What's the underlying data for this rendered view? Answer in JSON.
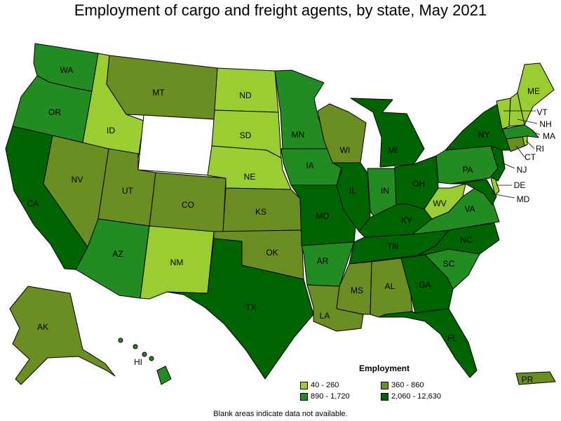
{
  "title": "Employment of cargo and freight agents, by state, May 2021",
  "legend": {
    "title": "Employment",
    "bins": [
      {
        "label": "40 - 260",
        "color": "#9acd32"
      },
      {
        "label": "360 - 860",
        "color": "#6b8e23"
      },
      {
        "label": "890 - 1,720",
        "color": "#228b22"
      },
      {
        "label": "2,060 - 12,630",
        "color": "#006400"
      }
    ]
  },
  "footnote": "Blank areas indicate data not available.",
  "states": [
    {
      "abbr": "WA",
      "bin": 2
    },
    {
      "abbr": "OR",
      "bin": 2
    },
    {
      "abbr": "CA",
      "bin": 3
    },
    {
      "abbr": "ID",
      "bin": 0
    },
    {
      "abbr": "NV",
      "bin": 1
    },
    {
      "abbr": "MT",
      "bin": 1
    },
    {
      "abbr": "WY",
      "bin": -1
    },
    {
      "abbr": "UT",
      "bin": 1
    },
    {
      "abbr": "AZ",
      "bin": 2
    },
    {
      "abbr": "CO",
      "bin": 1
    },
    {
      "abbr": "NM",
      "bin": 0
    },
    {
      "abbr": "ND",
      "bin": 0
    },
    {
      "abbr": "SD",
      "bin": 0
    },
    {
      "abbr": "NE",
      "bin": 0
    },
    {
      "abbr": "KS",
      "bin": 1
    },
    {
      "abbr": "OK",
      "bin": 1
    },
    {
      "abbr": "TX",
      "bin": 3
    },
    {
      "abbr": "MN",
      "bin": 2
    },
    {
      "abbr": "IA",
      "bin": 2
    },
    {
      "abbr": "MO",
      "bin": 3
    },
    {
      "abbr": "AR",
      "bin": 2
    },
    {
      "abbr": "LA",
      "bin": 1
    },
    {
      "abbr": "WI",
      "bin": 1
    },
    {
      "abbr": "IL",
      "bin": 3
    },
    {
      "abbr": "MI",
      "bin": 3
    },
    {
      "abbr": "IN",
      "bin": 2
    },
    {
      "abbr": "OH",
      "bin": 3
    },
    {
      "abbr": "KY",
      "bin": 3
    },
    {
      "abbr": "TN",
      "bin": 3
    },
    {
      "abbr": "MS",
      "bin": 1
    },
    {
      "abbr": "AL",
      "bin": 1
    },
    {
      "abbr": "GA",
      "bin": 3
    },
    {
      "abbr": "FL",
      "bin": 3
    },
    {
      "abbr": "SC",
      "bin": 2
    },
    {
      "abbr": "NC",
      "bin": 3
    },
    {
      "abbr": "VA",
      "bin": 2
    },
    {
      "abbr": "WV",
      "bin": 0
    },
    {
      "abbr": "PA",
      "bin": 2
    },
    {
      "abbr": "NY",
      "bin": 3
    },
    {
      "abbr": "VT",
      "bin": 0
    },
    {
      "abbr": "NH",
      "bin": 0
    },
    {
      "abbr": "ME",
      "bin": 0
    },
    {
      "abbr": "MA",
      "bin": 2
    },
    {
      "abbr": "RI",
      "bin": 0
    },
    {
      "abbr": "CT",
      "bin": 1
    },
    {
      "abbr": "NJ",
      "bin": 3
    },
    {
      "abbr": "DE",
      "bin": 0
    },
    {
      "abbr": "MD",
      "bin": 3
    },
    {
      "abbr": "AK",
      "bin": 1
    },
    {
      "abbr": "HI",
      "bin": 2
    },
    {
      "abbr": "PR",
      "bin": 1
    }
  ]
}
